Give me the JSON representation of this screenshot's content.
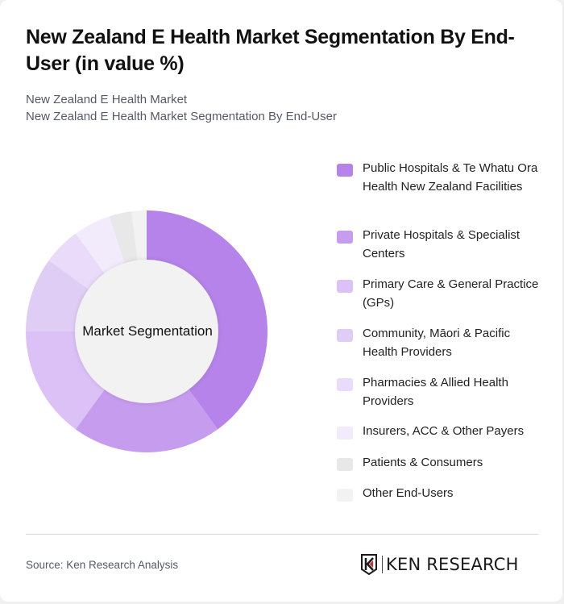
{
  "header": {
    "title": "New Zealand E Health Market Segmentation By End-User (in value %)",
    "subtitle_line1": "New Zealand E Health Market",
    "subtitle_line2": "New Zealand E Health Market Segmentation By End-User"
  },
  "chart": {
    "center_label": "Market Segmentation"
  },
  "legend": {
    "items": [
      {
        "label": "Public Hospitals & Te Whatu Ora Health New Zealand Facilities",
        "color": "#b583ea"
      },
      {
        "label": "Private Hospitals & Specialist Centers",
        "color": "#c69cef"
      },
      {
        "label": "Primary Care & General Practice (GPs)",
        "color": "#dbc1f6"
      },
      {
        "label": "Community, Māori & Pacific Health Providers",
        "color": "#e0cdf6"
      },
      {
        "label": "Pharmacies & Allied Health Providers",
        "color": "#e9dbf9"
      },
      {
        "label": "Insurers, ACC & Other Payers",
        "color": "#f2ebfc"
      },
      {
        "label": "Patients & Consumers",
        "color": "#e8e8e8"
      },
      {
        "label": "Other End-Users",
        "color": "#f2f2f2"
      }
    ]
  },
  "footer": {
    "source": "Source: Ken Research Analysis",
    "logo_text": "KEN RESEARCH"
  },
  "chart_data": {
    "type": "pie",
    "title": "New Zealand E Health Market Segmentation By End-User (in value %)",
    "subtitle": "New Zealand E Health Market Segmentation By End-User",
    "center_label": "Market Segmentation",
    "categories": [
      "Public Hospitals & Te Whatu Ora Health New Zealand Facilities",
      "Private Hospitals & Specialist Centers",
      "Primary Care & General Practice (GPs)",
      "Community, Māori & Pacific Health Providers",
      "Pharmacies & Allied Health Providers",
      "Insurers, ACC & Other Payers",
      "Patients & Consumers",
      "Other End-Users"
    ],
    "values": [
      40,
      20,
      15,
      10,
      5,
      5,
      3,
      2
    ],
    "colors": [
      "#b583ea",
      "#c69cef",
      "#dbc1f6",
      "#e0cdf6",
      "#e9dbf9",
      "#f2ebfc",
      "#e8e8e8",
      "#f2f2f2"
    ],
    "unit": "%",
    "donut": true,
    "legend_position": "right"
  }
}
